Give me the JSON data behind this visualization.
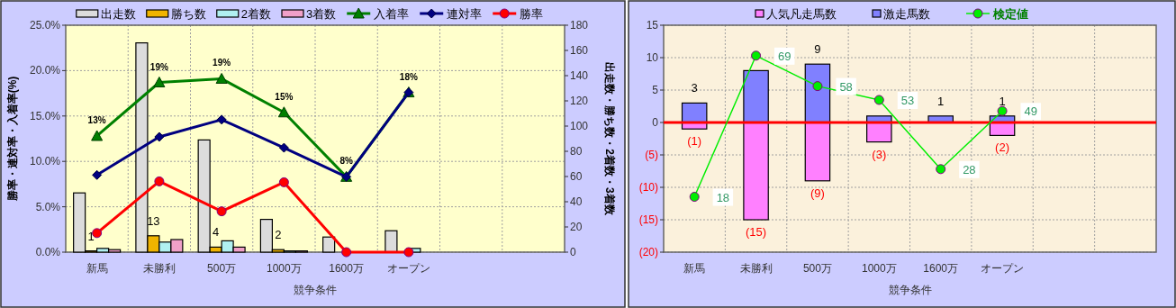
{
  "chart_data": [
    {
      "type": "bar",
      "categories": [
        "新馬",
        "未勝利",
        "500万",
        "1000万",
        "1600万",
        "オープン",
        null,
        null
      ],
      "xlabel": "競争条件",
      "ylabel": "勝率・連対率・入着率(%)",
      "y2label": "出走数・勝ち数・2着数・3着数",
      "ylim": [
        0,
        25
      ],
      "yticks": [
        {
          "value": 0,
          "label": "0.0%"
        },
        {
          "value": 5,
          "label": "5.0%"
        },
        {
          "value": 10,
          "label": "10.0%"
        },
        {
          "value": 15,
          "label": "15.0%"
        },
        {
          "value": 20,
          "label": "20.0%"
        },
        {
          "value": 25,
          "label": "25.0%"
        }
      ],
      "y2lim": [
        0,
        180
      ],
      "y2ticks": [
        0,
        20,
        40,
        60,
        80,
        100,
        120,
        140,
        160,
        180
      ],
      "grid": true,
      "legend": "top",
      "series": [
        {
          "name": "出走数",
          "type": "bar",
          "axis": "y2",
          "color": "#dcdcdc",
          "values": [
            47,
            166,
            89,
            26,
            12,
            17,
            null,
            null
          ]
        },
        {
          "name": "勝ち数",
          "type": "bar",
          "axis": "y2",
          "color": "#f0b400",
          "values": [
            1,
            13,
            4,
            2,
            0,
            0,
            null,
            null
          ],
          "value_labels": [
            "1",
            "13",
            "4",
            "2",
            null,
            null,
            null,
            null
          ]
        },
        {
          "name": "2着数",
          "type": "bar",
          "axis": "y2",
          "color": "#b0f0f0",
          "values": [
            3,
            8,
            9,
            1,
            null,
            3,
            null,
            null
          ]
        },
        {
          "name": "3着数",
          "type": "bar",
          "axis": "y2",
          "color": "#f0a0c8",
          "values": [
            2,
            10,
            4,
            1,
            0,
            0,
            null,
            null
          ]
        },
        {
          "name": "入着率",
          "type": "line",
          "color": "#008000",
          "marker": "triangle",
          "values": [
            12.8,
            18.7,
            19.1,
            15.4,
            8.3,
            17.6,
            null,
            null
          ],
          "value_labels": [
            "13%",
            "19%",
            "19%",
            "15%",
            "8%",
            "18%",
            null,
            null
          ]
        },
        {
          "name": "連対率",
          "type": "line",
          "color": "#000080",
          "marker": "diamond",
          "values": [
            8.5,
            12.7,
            14.6,
            11.5,
            8.3,
            17.6,
            null,
            null
          ]
        },
        {
          "name": "勝率",
          "type": "line",
          "color": "#ff0000",
          "marker": "circle",
          "values": [
            2.1,
            7.8,
            4.5,
            7.7,
            0,
            0,
            null,
            null
          ]
        }
      ]
    },
    {
      "type": "bar",
      "stacked": true,
      "categories": [
        "新馬",
        "未勝利",
        "500万",
        "1000万",
        "1600万",
        "オープン",
        null,
        null
      ],
      "xlabel": "競争条件",
      "ylim": [
        -20,
        15
      ],
      "yticks": [
        {
          "value": -20,
          "label": "(20)"
        },
        {
          "value": -15,
          "label": "(15)"
        },
        {
          "value": -10,
          "label": "(10)"
        },
        {
          "value": -5,
          "label": "(5)"
        },
        0,
        5,
        10,
        15
      ],
      "y2lim": [
        -2,
        80
      ],
      "grid": true,
      "legend": "top",
      "ref_lines": [
        {
          "axis": "y",
          "value": 0,
          "color": "#ff0000"
        }
      ],
      "series": [
        {
          "name": "人気凡走馬数",
          "type": "bar",
          "color": "#ff80ff",
          "values": [
            -1,
            -15,
            -9,
            -3,
            0,
            -2,
            null,
            null
          ],
          "value_labels": [
            "(1)",
            "(15)",
            "(9)",
            "(3)",
            null,
            "(2)",
            null,
            null
          ]
        },
        {
          "name": "激走馬数",
          "type": "bar",
          "color": "#8080ff",
          "values": [
            3,
            8,
            9,
            1,
            1,
            1,
            null,
            null
          ],
          "value_labels": [
            "3",
            null,
            "9",
            null,
            "1",
            "1",
            null,
            null
          ]
        },
        {
          "name": "検定値",
          "type": "line",
          "axis": "y2",
          "color": "#00ee00",
          "marker": "circle",
          "values": [
            18,
            69,
            58,
            53,
            28,
            49,
            null,
            null
          ],
          "value_labels": [
            "18",
            "69",
            "58",
            "53",
            "28",
            "49",
            null,
            null
          ]
        }
      ]
    }
  ]
}
